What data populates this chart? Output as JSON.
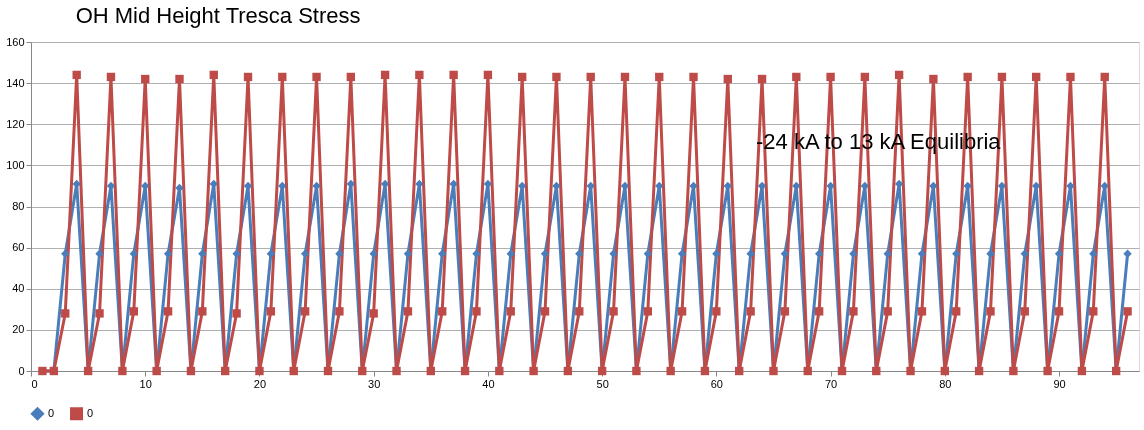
{
  "chart_data": {
    "type": "line",
    "title": "OH  Mid Height Tresca Stress",
    "annotations": [
      "-24 kA to 13 kA Equilibria"
    ],
    "x": [
      1,
      2,
      3,
      4,
      5,
      6,
      7,
      8,
      9,
      10,
      11,
      12,
      13,
      14,
      15,
      16,
      17,
      18,
      19,
      20,
      21,
      22,
      23,
      24,
      25,
      26,
      27,
      28,
      29,
      30,
      31,
      32,
      33,
      34,
      35,
      36,
      37,
      38,
      39,
      40,
      41,
      42,
      43,
      44,
      45,
      46,
      47,
      48,
      49,
      50,
      51,
      52,
      53,
      54,
      55,
      56,
      57,
      58,
      59,
      60,
      61,
      62,
      63,
      64,
      65,
      66,
      67,
      68,
      69,
      70,
      71,
      72,
      73,
      74,
      75,
      76,
      77,
      78,
      79,
      80,
      81,
      82,
      83,
      84,
      85,
      86,
      87,
      88,
      89,
      90,
      91,
      92,
      93,
      94,
      95,
      96
    ],
    "series": [
      {
        "name": "0",
        "color": "#4a7ebb",
        "marker": "diamond",
        "values": [
          0,
          0,
          57,
          91,
          0,
          57,
          90,
          0,
          57,
          90,
          0,
          57,
          89,
          0,
          57,
          91,
          0,
          57,
          90,
          0,
          57,
          90,
          0,
          57,
          90,
          0,
          57,
          91,
          0,
          57,
          91,
          0,
          57,
          91,
          0,
          57,
          91,
          0,
          57,
          91,
          0,
          57,
          90,
          0,
          57,
          90,
          0,
          57,
          90,
          0,
          57,
          90,
          0,
          57,
          90,
          0,
          57,
          90,
          0,
          57,
          90,
          0,
          57,
          90,
          0,
          57,
          90,
          0,
          57,
          90,
          0,
          57,
          90,
          0,
          57,
          91,
          0,
          57,
          90,
          0,
          57,
          90,
          0,
          57,
          90,
          0,
          57,
          90,
          0,
          57,
          90,
          0,
          57,
          90,
          0,
          57
        ]
      },
      {
        "name": "0",
        "color": "#be4b48",
        "marker": "square",
        "values": [
          0,
          0,
          28,
          144,
          0,
          28,
          143,
          0,
          29,
          142,
          0,
          29,
          142,
          0,
          29,
          144,
          0,
          28,
          143,
          0,
          29,
          143,
          0,
          29,
          143,
          0,
          29,
          143,
          0,
          28,
          144,
          0,
          29,
          144,
          0,
          29,
          144,
          0,
          29,
          144,
          0,
          29,
          143,
          0,
          29,
          143,
          0,
          29,
          143,
          0,
          29,
          143,
          0,
          29,
          143,
          0,
          29,
          143,
          0,
          29,
          142,
          0,
          29,
          142,
          0,
          29,
          143,
          0,
          29,
          143,
          0,
          29,
          143,
          0,
          29,
          144,
          0,
          29,
          142,
          0,
          29,
          143,
          0,
          29,
          143,
          0,
          29,
          143,
          0,
          29,
          143,
          0,
          29,
          143,
          0,
          29
        ]
      }
    ],
    "xlim": [
      0,
      97
    ],
    "xticks": [
      0,
      10,
      20,
      30,
      40,
      50,
      60,
      70,
      80,
      90
    ],
    "ylim": [
      0,
      160
    ],
    "yticks": [
      0,
      20,
      40,
      60,
      80,
      100,
      120,
      140,
      160
    ],
    "grid": "y",
    "legend": "bottom",
    "line_style": "solid"
  }
}
